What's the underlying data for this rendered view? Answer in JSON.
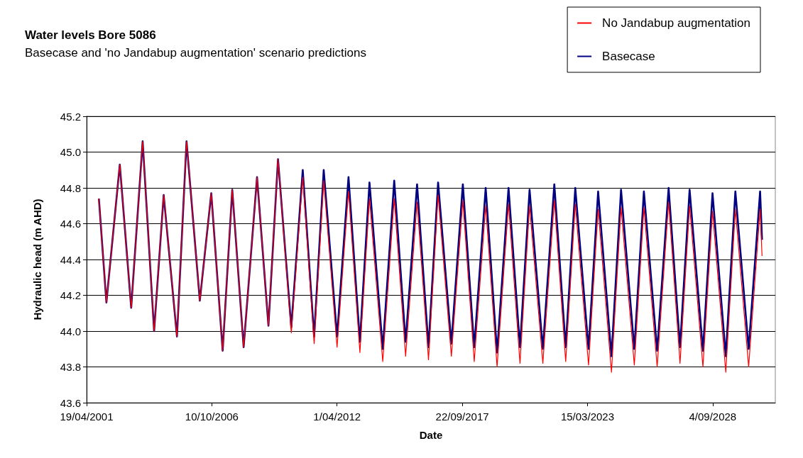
{
  "chart_data": {
    "type": "line",
    "title": "Water levels Bore 5086",
    "subtitle": "Basecase and 'no Jandabup augmentation' scenario predictions",
    "xlabel": "Date",
    "ylabel": "Hydraulic head (m AHD)",
    "x": [
      "2001-11",
      "2002-03",
      "2002-10",
      "2003-04",
      "2003-10",
      "2004-04",
      "2004-09",
      "2005-04",
      "2005-09",
      "2006-04",
      "2006-10",
      "2007-04",
      "2007-09",
      "2008-03",
      "2008-10",
      "2009-04",
      "2009-09",
      "2010-04",
      "2010-10",
      "2011-04",
      "2011-09",
      "2012-04",
      "2012-10",
      "2013-04",
      "2013-09",
      "2014-04",
      "2014-10",
      "2015-04",
      "2015-10",
      "2016-04",
      "2016-09",
      "2017-04",
      "2017-10",
      "2018-04",
      "2018-10",
      "2019-04",
      "2019-10",
      "2020-04",
      "2020-09",
      "2021-04",
      "2021-10",
      "2022-04",
      "2022-09",
      "2023-04",
      "2023-09",
      "2024-04",
      "2024-09",
      "2025-04",
      "2025-09",
      "2026-04",
      "2026-10",
      "2027-04",
      "2027-09",
      "2028-04",
      "2028-09",
      "2029-04",
      "2029-09",
      "2030-04",
      "2030-10",
      "2030-11"
    ],
    "series": [
      {
        "name": "No Jandabup augmentation",
        "color": "#ff0000",
        "values": [
          44.74,
          44.16,
          44.93,
          44.13,
          45.06,
          44.0,
          44.76,
          43.97,
          45.06,
          44.17,
          44.77,
          43.89,
          44.79,
          43.91,
          44.86,
          44.03,
          44.96,
          43.99,
          44.86,
          43.93,
          44.84,
          43.91,
          44.78,
          43.88,
          44.74,
          43.83,
          44.74,
          43.86,
          44.72,
          43.84,
          44.76,
          43.86,
          44.73,
          43.83,
          44.7,
          43.8,
          44.71,
          43.82,
          44.7,
          43.82,
          44.73,
          43.83,
          44.71,
          43.81,
          44.68,
          43.77,
          44.69,
          43.81,
          44.69,
          43.8,
          44.72,
          43.82,
          44.7,
          43.8,
          44.67,
          43.77,
          44.68,
          43.8,
          44.68,
          44.42
        ]
      },
      {
        "name": "Basecase",
        "color": "#000080",
        "values": [
          44.74,
          44.16,
          44.93,
          44.13,
          45.06,
          44.0,
          44.76,
          43.97,
          45.06,
          44.17,
          44.77,
          43.89,
          44.79,
          43.91,
          44.86,
          44.03,
          44.96,
          44.02,
          44.9,
          43.97,
          44.9,
          43.97,
          44.86,
          43.94,
          44.83,
          43.9,
          44.84,
          43.94,
          44.82,
          43.91,
          44.83,
          43.93,
          44.82,
          43.91,
          44.8,
          43.88,
          44.8,
          43.91,
          44.79,
          43.9,
          44.82,
          43.91,
          44.8,
          43.9,
          44.78,
          43.86,
          44.79,
          43.9,
          44.78,
          43.89,
          44.8,
          43.91,
          44.79,
          43.89,
          44.77,
          43.86,
          44.78,
          43.9,
          44.78,
          44.51
        ]
      }
    ],
    "xlim": [
      "2001-04-19",
      "2031-06-01"
    ],
    "xticks": [
      {
        "value": "2001-04-19",
        "label": "19/04/2001"
      },
      {
        "value": "2006-10-10",
        "label": "10/10/2006"
      },
      {
        "value": "2012-04-01",
        "label": "1/04/2012"
      },
      {
        "value": "2017-09-22",
        "label": "22/09/2017"
      },
      {
        "value": "2023-03-15",
        "label": "15/03/2023"
      },
      {
        "value": "2028-09-04",
        "label": "4/09/2028"
      }
    ],
    "ylim": [
      43.6,
      45.2
    ],
    "yticks": [
      43.6,
      43.8,
      {
        "value": 44,
        "label": "44.0"
      },
      44.2,
      44.4,
      44.6,
      44.8,
      {
        "value": 45,
        "label": "45.0"
      },
      45.2
    ],
    "grid": "y",
    "legend": "top right",
    "marker": "none",
    "line_style": "solid"
  }
}
